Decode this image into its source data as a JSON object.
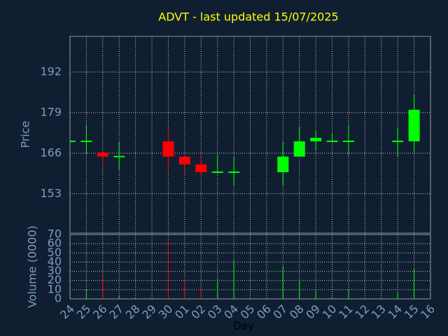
{
  "chart_data": {
    "type": "candlestick",
    "title": "ADVT - last updated 15/07/2025",
    "ylabel": "Price",
    "volume_label": "Volume (0000)",
    "xlabel": "Day",
    "x": [
      "24",
      "25",
      "26",
      "27",
      "28",
      "29",
      "30",
      "01",
      "02",
      "03",
      "04",
      "05",
      "06",
      "07",
      "08",
      "09",
      "10",
      "11",
      "12",
      "13",
      "14",
      "15",
      "16"
    ],
    "open": [
      169.8,
      169.8,
      166.2,
      164.9,
      null,
      null,
      169.8,
      164.9,
      162.4,
      159.9,
      159.9,
      null,
      null,
      159.9,
      164.9,
      169.8,
      169.8,
      169.8,
      null,
      null,
      169.8,
      169.8,
      null
    ],
    "high": [
      169.8,
      175.2,
      166.2,
      169.6,
      null,
      null,
      174.1,
      164.9,
      164.9,
      165.3,
      164.9,
      null,
      null,
      169.6,
      174.5,
      173.2,
      172.3,
      175.2,
      null,
      null,
      174.1,
      184.8,
      null
    ],
    "low": [
      169.8,
      165.8,
      161.5,
      160.6,
      null,
      null,
      159.9,
      159.7,
      158.1,
      159.7,
      155.7,
      null,
      null,
      155.7,
      164.9,
      166.7,
      169.8,
      165.3,
      null,
      null,
      164.9,
      166.4,
      null
    ],
    "close": [
      169.8,
      169.8,
      164.9,
      164.9,
      null,
      null,
      164.9,
      162.4,
      159.9,
      159.9,
      159.9,
      null,
      null,
      164.9,
      169.8,
      170.9,
      169.8,
      169.8,
      null,
      null,
      169.8,
      179.9,
      null
    ],
    "volume": [
      null,
      10,
      26,
      3,
      null,
      null,
      65,
      22,
      14,
      21,
      42,
      null,
      null,
      35,
      20,
      9,
      2,
      10,
      null,
      null,
      7,
      33,
      null
    ],
    "up_color": "#00ff00",
    "down_color": "#ff0000",
    "ylim": [
      140.4,
      203.4
    ],
    "yticks": [
      153,
      166,
      179,
      192
    ],
    "vlim": [
      0,
      70
    ],
    "vticks": [
      0,
      10,
      20,
      30,
      40,
      50,
      60,
      70
    ],
    "grid": true
  }
}
